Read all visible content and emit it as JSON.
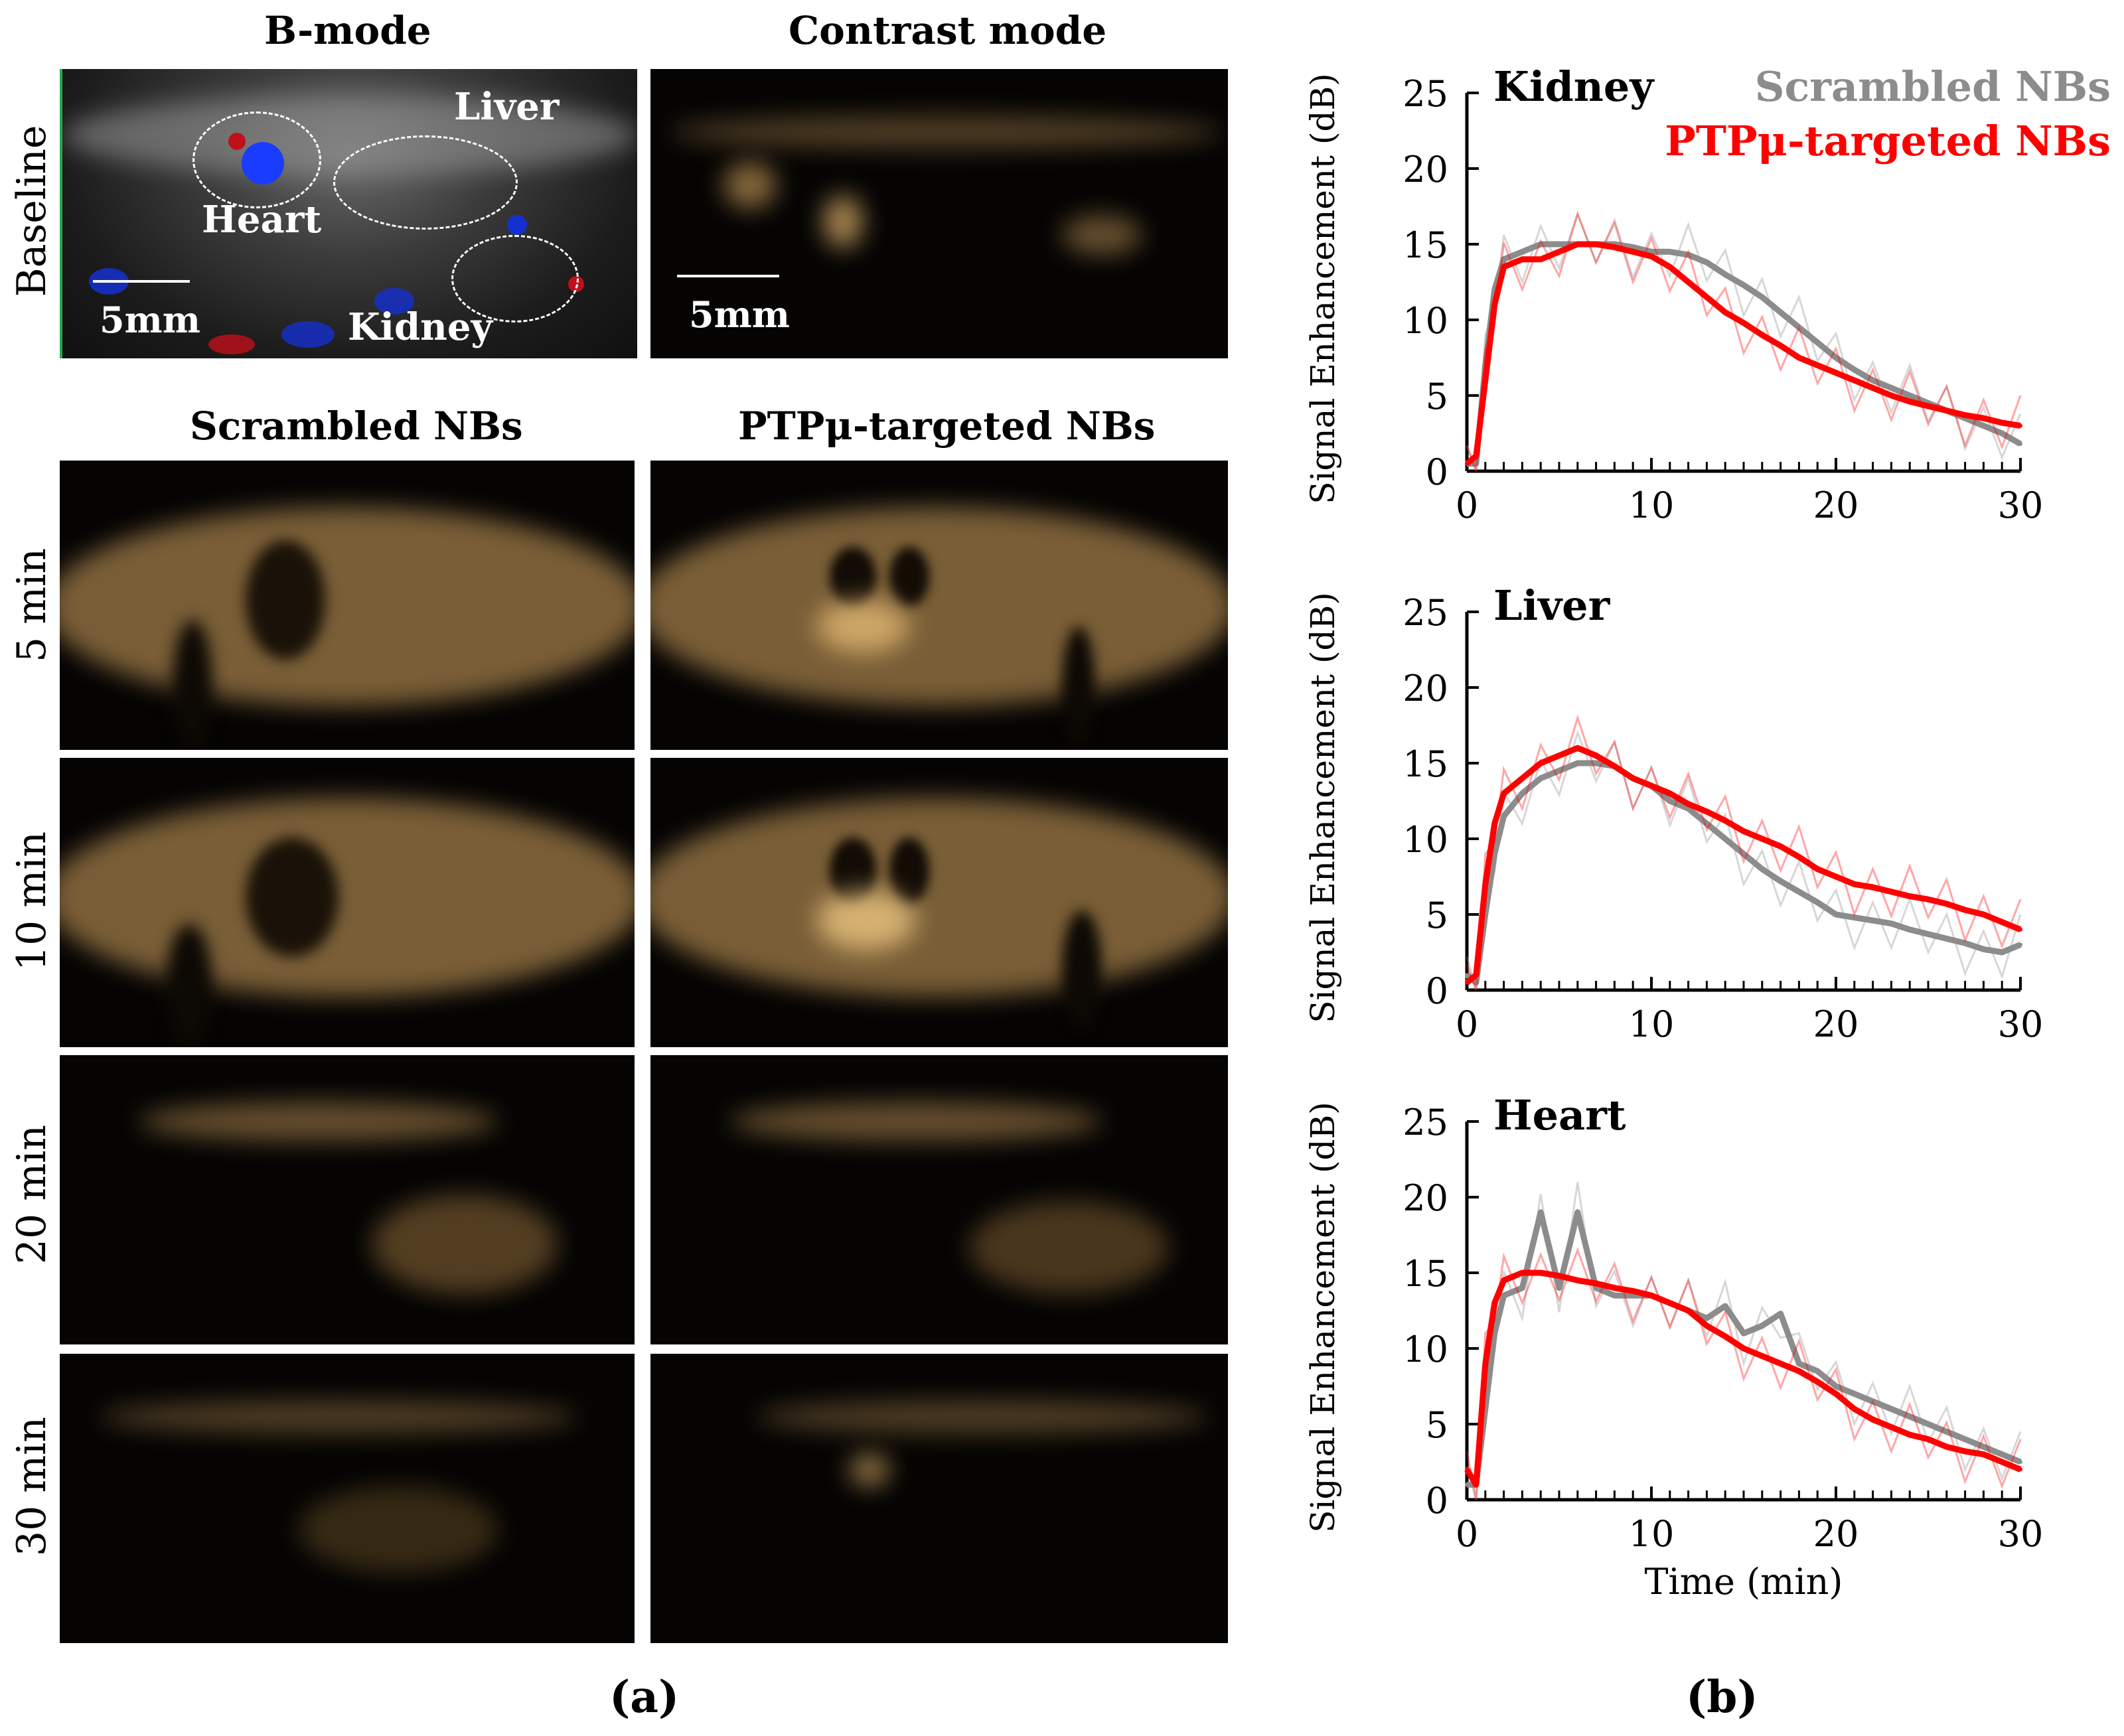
{
  "panel_a": {
    "col_titles": {
      "bmode": "B-mode",
      "contrast": "Contrast mode",
      "scrambled": "Scrambled NBs",
      "targeted": "PTPμ-targeted NBs"
    },
    "row_labels": {
      "baseline": "Baseline",
      "t5": "5 min",
      "t10": "10 min",
      "t20": "20 min",
      "t30": "30 min"
    },
    "organs": {
      "liver": "Liver",
      "heart": "Heart",
      "kidney": "Kidney"
    },
    "scale_bar": "5mm",
    "caption": "(a)"
  },
  "panel_b": {
    "caption": "(b)"
  },
  "colors": {
    "scrambled": "#8c8c8c",
    "targeted": "#ff0000",
    "contrast_tissue": "#d9a862"
  },
  "chart_data": [
    {
      "type": "line",
      "title": "Kidney",
      "xlabel": "",
      "ylabel": "Signal Enhancement (dB)",
      "xlim": [
        0,
        30
      ],
      "ylim": [
        0,
        25
      ],
      "xticks": [
        0,
        10,
        20,
        30
      ],
      "yticks": [
        0,
        5,
        10,
        15,
        20,
        25
      ],
      "legend": [
        "Scrambled NBs",
        "PTPμ-targeted NBs"
      ],
      "legend_position": "top-right",
      "series": [
        {
          "name": "Scrambled NBs",
          "x": [
            0,
            0.5,
            1,
            1.5,
            2,
            3,
            4,
            5,
            6,
            7,
            8,
            9,
            10,
            11,
            12,
            13,
            14,
            15,
            16,
            17,
            18,
            19,
            20,
            21,
            22,
            23,
            24,
            25,
            26,
            27,
            28,
            29,
            30
          ],
          "y": [
            0.5,
            0.5,
            7,
            12,
            14,
            14.5,
            15,
            15,
            15,
            15,
            15,
            14.8,
            14.5,
            14.5,
            14.3,
            13.8,
            13,
            12.3,
            11.5,
            10.5,
            9.5,
            8.5,
            7.5,
            6.7,
            6,
            5.5,
            5,
            4.5,
            4,
            3.5,
            3,
            2.5,
            1.8
          ]
        },
        {
          "name": "PTPμ-targeted NBs",
          "x": [
            0,
            0.5,
            1,
            1.5,
            2,
            3,
            4,
            5,
            6,
            7,
            8,
            9,
            10,
            11,
            12,
            13,
            14,
            15,
            16,
            17,
            18,
            19,
            20,
            21,
            22,
            23,
            24,
            25,
            26,
            27,
            28,
            29,
            30
          ],
          "y": [
            0.5,
            1,
            6,
            11,
            13.5,
            14,
            14,
            14.5,
            15,
            15,
            14.8,
            14.5,
            14.2,
            13.5,
            12.5,
            11.5,
            10.5,
            9.8,
            9,
            8.3,
            7.5,
            7,
            6.5,
            6,
            5.5,
            5,
            4.6,
            4.3,
            4,
            3.7,
            3.5,
            3.2,
            3
          ]
        }
      ]
    },
    {
      "type": "line",
      "title": "Liver",
      "xlabel": "",
      "ylabel": "Signal Enhancement (dB)",
      "xlim": [
        0,
        30
      ],
      "ylim": [
        0,
        25
      ],
      "xticks": [
        0,
        10,
        20,
        30
      ],
      "yticks": [
        0,
        5,
        10,
        15,
        20,
        25
      ],
      "series": [
        {
          "name": "Scrambled NBs",
          "x": [
            0,
            0.5,
            1,
            1.5,
            2,
            3,
            4,
            5,
            6,
            7,
            8,
            9,
            10,
            11,
            12,
            13,
            14,
            15,
            16,
            17,
            18,
            19,
            20,
            21,
            22,
            23,
            24,
            25,
            26,
            27,
            28,
            29,
            30
          ],
          "y": [
            1,
            0.5,
            5,
            9,
            11.5,
            13,
            14,
            14.5,
            15,
            15,
            14.8,
            14,
            13.5,
            12.5,
            12,
            11,
            10,
            9,
            8,
            7.2,
            6.5,
            5.8,
            5,
            4.8,
            4.6,
            4.4,
            4,
            3.7,
            3.4,
            3.1,
            2.7,
            2.5,
            3
          ]
        },
        {
          "name": "PTPμ-targeted NBs",
          "x": [
            0,
            0.5,
            1,
            1.5,
            2,
            3,
            4,
            5,
            6,
            7,
            8,
            9,
            10,
            11,
            12,
            13,
            14,
            15,
            16,
            17,
            18,
            19,
            20,
            21,
            22,
            23,
            24,
            25,
            26,
            27,
            28,
            29,
            30
          ],
          "y": [
            0.5,
            1,
            7,
            11,
            13,
            14,
            15,
            15.5,
            16,
            15.5,
            14.8,
            14,
            13.5,
            13,
            12.3,
            11.8,
            11.2,
            10.5,
            10,
            9.5,
            8.8,
            8,
            7.5,
            7,
            6.8,
            6.5,
            6.2,
            6,
            5.7,
            5.3,
            5,
            4.5,
            4
          ]
        }
      ]
    },
    {
      "type": "line",
      "title": "Heart",
      "xlabel": "Time (min)",
      "ylabel": "Signal Enhancement (dB)",
      "xlim": [
        0,
        30
      ],
      "ylim": [
        0,
        25
      ],
      "xticks": [
        0,
        10,
        20,
        30
      ],
      "yticks": [
        0,
        5,
        10,
        15,
        20,
        25
      ],
      "series": [
        {
          "name": "Scrambled NBs",
          "x": [
            0,
            0.5,
            1,
            1.5,
            2,
            3,
            4,
            5,
            6,
            7,
            8,
            9,
            10,
            11,
            12,
            13,
            14,
            15,
            16,
            17,
            18,
            19,
            20,
            21,
            22,
            23,
            24,
            25,
            26,
            27,
            28,
            29,
            30
          ],
          "y": [
            1,
            1,
            6,
            11,
            13.5,
            14,
            19,
            14,
            19,
            14,
            13.5,
            13.5,
            13.5,
            13,
            12.5,
            12,
            12.8,
            11,
            11.5,
            12.3,
            9,
            8.5,
            7.5,
            7,
            6.5,
            6,
            5.5,
            5,
            4.5,
            4,
            3.5,
            3,
            2.5
          ]
        },
        {
          "name": "PTPμ-targeted NBs",
          "x": [
            0,
            0.5,
            1,
            1.5,
            2,
            3,
            4,
            5,
            6,
            7,
            8,
            9,
            10,
            11,
            12,
            13,
            14,
            15,
            16,
            17,
            18,
            19,
            20,
            21,
            22,
            23,
            24,
            25,
            26,
            27,
            28,
            29,
            30
          ],
          "y": [
            2,
            1,
            9,
            13,
            14.5,
            15,
            15,
            14.8,
            14.5,
            14.3,
            14,
            13.8,
            13.5,
            13,
            12.5,
            11.5,
            10.8,
            10,
            9.5,
            9,
            8.5,
            7.8,
            7,
            6,
            5.3,
            4.8,
            4.3,
            4,
            3.5,
            3.2,
            3,
            2.5,
            2
          ]
        }
      ]
    }
  ]
}
